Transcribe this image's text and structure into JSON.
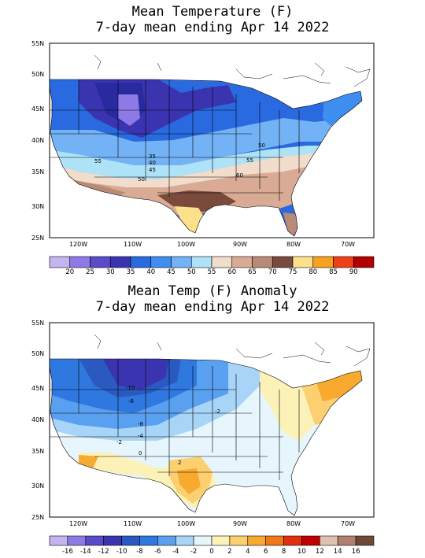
{
  "panels": [
    {
      "title_line1": "Mean Temperature (F)",
      "title_line2": "7-day mean ending Apr 14 2022",
      "lat_ticks": [
        "55N",
        "50N",
        "45N",
        "40N",
        "35N",
        "30N",
        "25N"
      ],
      "lon_ticks": [
        "120W",
        "110W",
        "100W",
        "90W",
        "80W",
        "70W"
      ],
      "contour_labels": [
        "35",
        "40",
        "45",
        "50",
        "55",
        "50",
        "55",
        "60"
      ],
      "legend_labels": [
        "20",
        "25",
        "30",
        "35",
        "40",
        "45",
        "50",
        "55",
        "60",
        "65",
        "70",
        "75",
        "80",
        "85",
        "90"
      ],
      "legend_colors": [
        "#c4b5f0",
        "#8e7ae6",
        "#5a4bc8",
        "#3a34b0",
        "#2a6ae0",
        "#3e8ef0",
        "#74b2f6",
        "#aee2f6",
        "#f2dccc",
        "#d9aa94",
        "#b98a76",
        "#7a4a3c",
        "#fce08a",
        "#f8a020",
        "#ee4018",
        "#b00000"
      ]
    },
    {
      "title_line1": "Mean Temp (F) Anomaly",
      "title_line2": "7-day mean ending Apr 14 2022",
      "lat_ticks": [
        "55N",
        "50N",
        "45N",
        "40N",
        "35N",
        "30N",
        "25N"
      ],
      "lon_ticks": [
        "120W",
        "110W",
        "100W",
        "90W",
        "80W",
        "70W"
      ],
      "contour_labels": [
        "-10",
        "-8",
        "-2",
        "-8",
        "-4",
        "-2",
        "0",
        "2"
      ],
      "legend_labels": [
        "-16",
        "-14",
        "-12",
        "-10",
        "-8",
        "-6",
        "-4",
        "-2",
        "0",
        "2",
        "4",
        "6",
        "8",
        "10",
        "12",
        "14",
        "16"
      ],
      "legend_colors": [
        "#c4b5f0",
        "#8e7ae6",
        "#5a4bc8",
        "#3a34b0",
        "#2a5ac0",
        "#2f78e0",
        "#5aa0f0",
        "#a8d4f8",
        "#e6f6fc",
        "#fcf2b8",
        "#fcd070",
        "#f8aa30",
        "#f07818",
        "#e03010",
        "#c00000",
        "#e0c0b0",
        "#b08070",
        "#704838"
      ]
    }
  ]
}
